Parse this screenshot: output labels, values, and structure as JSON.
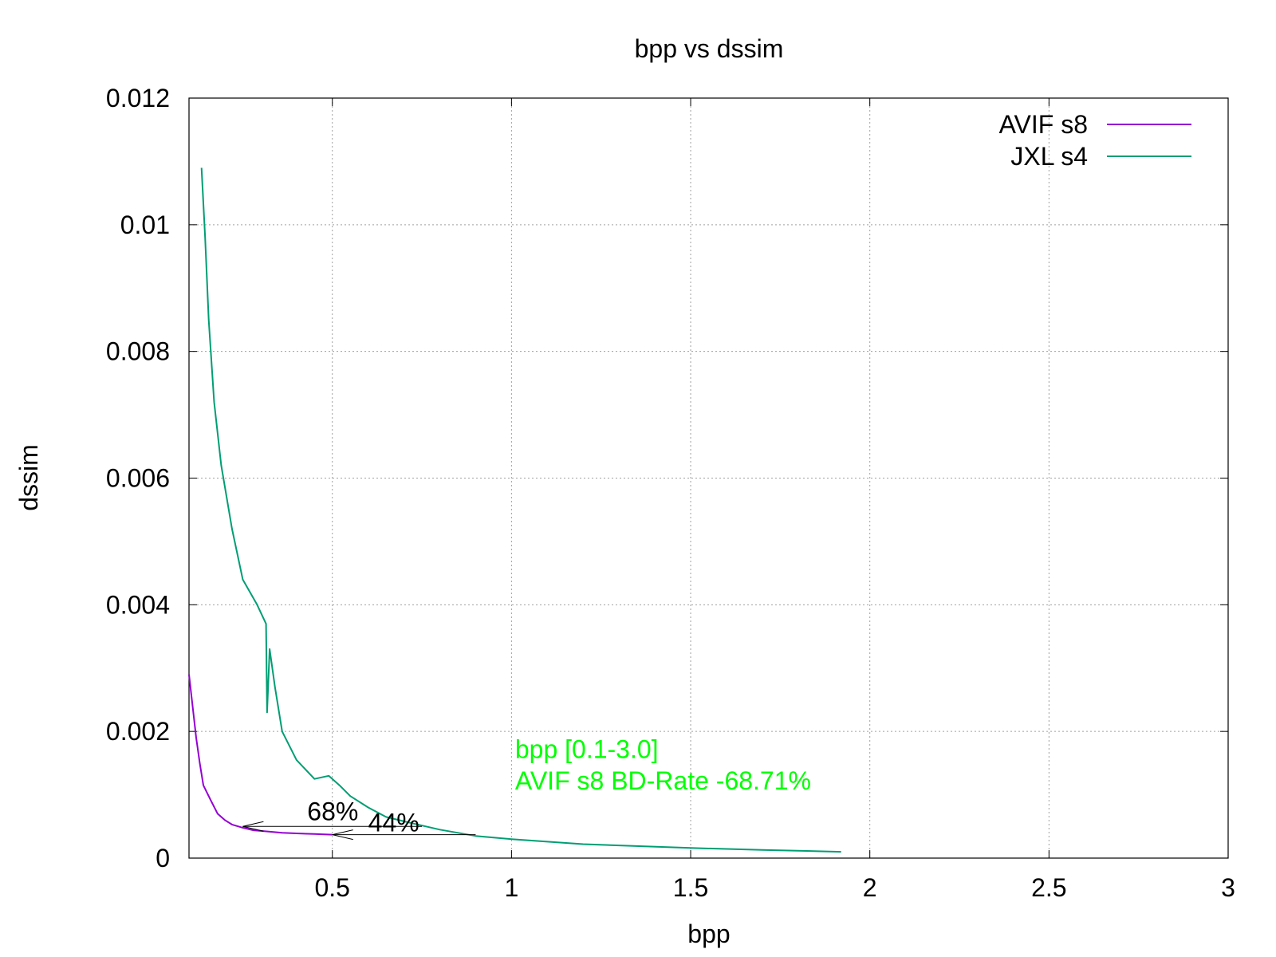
{
  "chart_data": {
    "type": "line",
    "title": "bpp vs dssim",
    "xlabel": "bpp",
    "ylabel": "dssim",
    "xlim": [
      0.1,
      3
    ],
    "ylim": [
      0,
      0.012
    ],
    "grid": true,
    "legend_position": "top-right",
    "x_ticks": [
      0.5,
      1,
      1.5,
      2,
      2.5,
      3
    ],
    "x_tick_labels": [
      "0.5",
      "1",
      "1.5",
      "2",
      "2.5",
      "3"
    ],
    "y_ticks": [
      0,
      0.002,
      0.004,
      0.006,
      0.008,
      0.01,
      0.012
    ],
    "y_tick_labels": [
      "0",
      "0.002",
      "0.004",
      "0.006",
      "0.008",
      "0.01",
      "0.012"
    ],
    "series": [
      {
        "name": "AVIF s8",
        "color": "#9400d3",
        "x": [
          0.1,
          0.11,
          0.12,
          0.13,
          0.14,
          0.16,
          0.18,
          0.2,
          0.22,
          0.25,
          0.28,
          0.32,
          0.36,
          0.4,
          0.45,
          0.5
        ],
        "y": [
          0.0029,
          0.0024,
          0.0019,
          0.0015,
          0.00115,
          0.00092,
          0.0007,
          0.0006,
          0.00053,
          0.00048,
          0.00044,
          0.00042,
          0.0004,
          0.00039,
          0.00038,
          0.00037
        ]
      },
      {
        "name": "JXL s4",
        "color": "#009e73",
        "x": [
          0.135,
          0.145,
          0.155,
          0.17,
          0.19,
          0.22,
          0.25,
          0.29,
          0.315,
          0.318,
          0.325,
          0.34,
          0.36,
          0.4,
          0.45,
          0.49,
          0.5,
          0.52,
          0.55,
          0.6,
          0.65,
          0.7,
          0.8,
          0.9,
          1.0,
          1.2,
          1.5,
          1.7,
          1.92
        ],
        "y": [
          0.0109,
          0.0098,
          0.0085,
          0.0072,
          0.0062,
          0.0052,
          0.0044,
          0.004,
          0.0037,
          0.0023,
          0.0033,
          0.0027,
          0.002,
          0.00155,
          0.00125,
          0.0013,
          0.00125,
          0.00115,
          0.00098,
          0.0008,
          0.00065,
          0.00058,
          0.00045,
          0.00035,
          0.0003,
          0.00022,
          0.00016,
          0.00013,
          0.0001
        ]
      }
    ],
    "arrows": [
      {
        "from": [
          0.75,
          0.0005
        ],
        "to": [
          0.25,
          0.0005
        ]
      },
      {
        "from": [
          0.9,
          0.00037
        ],
        "to": [
          0.5,
          0.00037
        ]
      }
    ],
    "annotations": [
      {
        "text": "68%",
        "x": 0.43,
        "y": 0.0006
      },
      {
        "text": "44%",
        "x": 0.6,
        "y": 0.00042
      },
      {
        "text": "bpp [0.1-3.0]",
        "x": 1.01,
        "y": 0.00158,
        "color": "#00ff00"
      },
      {
        "text": "AVIF s8 BD-Rate -68.71%",
        "x": 1.01,
        "y": 0.00108,
        "color": "#00ff00"
      }
    ]
  }
}
